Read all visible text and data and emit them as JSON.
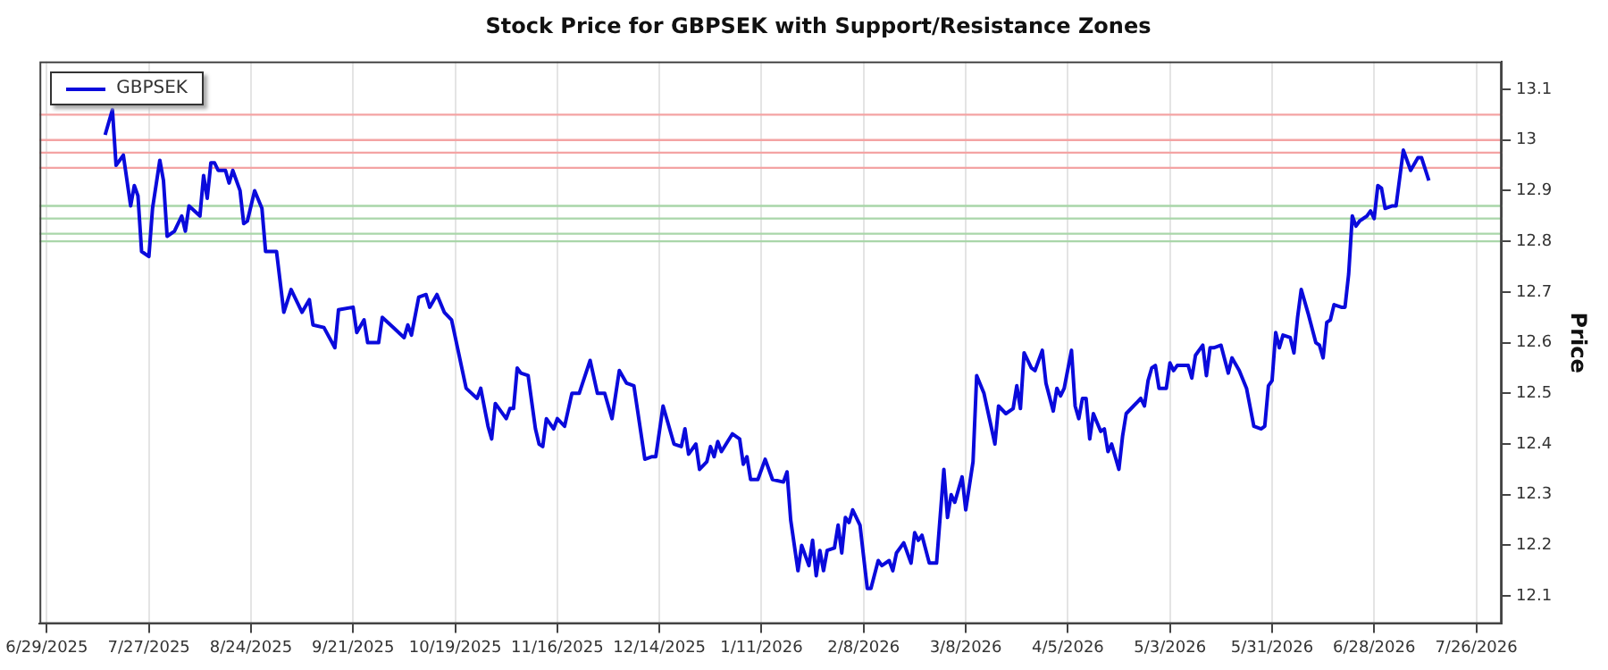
{
  "chart_data": {
    "type": "line",
    "title": "Stock Price for GBPSEK with Support/Resistance Zones",
    "ylabel": "Price",
    "xlim": [
      "2025-06-27",
      "2026-08-02"
    ],
    "xticks": [
      {
        "value": "2025-06-29",
        "label": "6/29/2025"
      },
      {
        "value": "2025-07-27",
        "label": "7/27/2025"
      },
      {
        "value": "2025-08-24",
        "label": "8/24/2025"
      },
      {
        "value": "2025-09-21",
        "label": "9/21/2025"
      },
      {
        "value": "2025-10-19",
        "label": "10/19/2025"
      },
      {
        "value": "2025-11-16",
        "label": "11/16/2025"
      },
      {
        "value": "2025-12-14",
        "label": "12/14/2025"
      },
      {
        "value": "2026-01-11",
        "label": "1/11/2026"
      },
      {
        "value": "2026-02-08",
        "label": "2/8/2026"
      },
      {
        "value": "2026-03-08",
        "label": "3/8/2026"
      },
      {
        "value": "2026-04-05",
        "label": "4/5/2026"
      },
      {
        "value": "2026-05-03",
        "label": "5/3/2026"
      },
      {
        "value": "2026-05-31",
        "label": "5/31/2026"
      },
      {
        "value": "2026-06-28",
        "label": "6/28/2026"
      },
      {
        "value": "2026-07-26",
        "label": "7/26/2026"
      }
    ],
    "ylim": [
      12.045,
      13.155
    ],
    "yticks": [
      12.1,
      12.2,
      12.3,
      12.4,
      12.5,
      12.6,
      12.7,
      12.8,
      12.9,
      {
        "value": 13,
        "label": "13"
      },
      13.1
    ],
    "grid": "x",
    "legend": "top left",
    "line_style": "solid",
    "ref_lines": [
      {
        "axis": "y",
        "value": 13.05,
        "color": "#f4a3a3"
      },
      {
        "axis": "y",
        "value": 13.0,
        "color": "#f4a3a3"
      },
      {
        "axis": "y",
        "value": 12.975,
        "color": "#f4a3a3"
      },
      {
        "axis": "y",
        "value": 12.945,
        "color": "#f4a3a3"
      },
      {
        "axis": "y",
        "value": 12.87,
        "color": "#a9d6a9"
      },
      {
        "axis": "y",
        "value": 12.845,
        "color": "#a9d6a9"
      },
      {
        "axis": "y",
        "value": 12.815,
        "color": "#a9d6a9"
      },
      {
        "axis": "y",
        "value": 12.8,
        "color": "#a9d6a9"
      }
    ],
    "series": [
      {
        "name": "GBPSEK",
        "color": "#0a0adc",
        "x": [
          "2025-07-15",
          "2025-07-17",
          "2025-07-18",
          "2025-07-20",
          "2025-07-22",
          "2025-07-23",
          "2025-07-24",
          "2025-07-25",
          "2025-07-27",
          "2025-07-28",
          "2025-07-30",
          "2025-07-31",
          "2025-08-01",
          "2025-08-03",
          "2025-08-05",
          "2025-08-06",
          "2025-08-07",
          "2025-08-10",
          "2025-08-11",
          "2025-08-12",
          "2025-08-13",
          "2025-08-14",
          "2025-08-15",
          "2025-08-17",
          "2025-08-18",
          "2025-08-19",
          "2025-08-21",
          "2025-08-22",
          "2025-08-23",
          "2025-08-25",
          "2025-08-27",
          "2025-08-28",
          "2025-08-31",
          "2025-09-02",
          "2025-09-04",
          "2025-09-07",
          "2025-09-09",
          "2025-09-10",
          "2025-09-13",
          "2025-09-16",
          "2025-09-17",
          "2025-09-21",
          "2025-09-22",
          "2025-09-24",
          "2025-09-25",
          "2025-09-28",
          "2025-09-29",
          "2025-10-02",
          "2025-10-05",
          "2025-10-06",
          "2025-10-07",
          "2025-10-09",
          "2025-10-11",
          "2025-10-12",
          "2025-10-14",
          "2025-10-16",
          "2025-10-18",
          "2025-10-22",
          "2025-10-25",
          "2025-10-26",
          "2025-10-28",
          "2025-10-29",
          "2025-10-30",
          "2025-11-02",
          "2025-11-03",
          "2025-11-04",
          "2025-11-05",
          "2025-11-06",
          "2025-11-08",
          "2025-11-10",
          "2025-11-11",
          "2025-11-12",
          "2025-11-13",
          "2025-11-15",
          "2025-11-16",
          "2025-11-18",
          "2025-11-20",
          "2025-11-22",
          "2025-11-25",
          "2025-11-27",
          "2025-11-29",
          "2025-12-01",
          "2025-12-03",
          "2025-12-05",
          "2025-12-07",
          "2025-12-10",
          "2025-12-12",
          "2025-12-13",
          "2025-12-15",
          "2025-12-18",
          "2025-12-20",
          "2025-12-21",
          "2025-12-22",
          "2025-12-24",
          "2025-12-25",
          "2025-12-27",
          "2025-12-28",
          "2025-12-29",
          "2025-12-30",
          "2025-12-31",
          "2026-01-03",
          "2026-01-05",
          "2026-01-06",
          "2026-01-07",
          "2026-01-08",
          "2026-01-10",
          "2026-01-12",
          "2026-01-14",
          "2026-01-17",
          "2026-01-18",
          "2026-01-19",
          "2026-01-21",
          "2026-01-22",
          "2026-01-24",
          "2026-01-25",
          "2026-01-26",
          "2026-01-27",
          "2026-01-28",
          "2026-01-29",
          "2026-01-31",
          "2026-02-01",
          "2026-02-02",
          "2026-02-03",
          "2026-02-04",
          "2026-02-05",
          "2026-02-07",
          "2026-02-09",
          "2026-02-10",
          "2026-02-12",
          "2026-02-13",
          "2026-02-15",
          "2026-02-16",
          "2026-02-17",
          "2026-02-19",
          "2026-02-21",
          "2026-02-22",
          "2026-02-23",
          "2026-02-24",
          "2026-02-26",
          "2026-02-28",
          "2026-03-02",
          "2026-03-03",
          "2026-03-04",
          "2026-03-05",
          "2026-03-07",
          "2026-03-08",
          "2026-03-10",
          "2026-03-11",
          "2026-03-13",
          "2026-03-16",
          "2026-03-17",
          "2026-03-19",
          "2026-03-21",
          "2026-03-22",
          "2026-03-23",
          "2026-03-24",
          "2026-03-26",
          "2026-03-27",
          "2026-03-29",
          "2026-03-30",
          "2026-04-01",
          "2026-04-02",
          "2026-04-03",
          "2026-04-04",
          "2026-04-06",
          "2026-04-07",
          "2026-04-08",
          "2026-04-09",
          "2026-04-10",
          "2026-04-11",
          "2026-04-12",
          "2026-04-14",
          "2026-04-15",
          "2026-04-16",
          "2026-04-17",
          "2026-04-19",
          "2026-04-20",
          "2026-04-21",
          "2026-04-23",
          "2026-04-25",
          "2026-04-26",
          "2026-04-27",
          "2026-04-28",
          "2026-04-29",
          "2026-04-30",
          "2026-05-02",
          "2026-05-03",
          "2026-05-04",
          "2026-05-05",
          "2026-05-08",
          "2026-05-09",
          "2026-05-10",
          "2026-05-12",
          "2026-05-13",
          "2026-05-14",
          "2026-05-15",
          "2026-05-17",
          "2026-05-19",
          "2026-05-20",
          "2026-05-22",
          "2026-05-24",
          "2026-05-26",
          "2026-05-28",
          "2026-05-29",
          "2026-05-30",
          "2026-05-31",
          "2026-06-01",
          "2026-06-02",
          "2026-06-03",
          "2026-06-05",
          "2026-06-06",
          "2026-06-07",
          "2026-06-08",
          "2026-06-10",
          "2026-06-12",
          "2026-06-13",
          "2026-06-14",
          "2026-06-15",
          "2026-06-16",
          "2026-06-17",
          "2026-06-19",
          "2026-06-20",
          "2026-06-21",
          "2026-06-22",
          "2026-06-23",
          "2026-06-24",
          "2026-06-26",
          "2026-06-27",
          "2026-06-28",
          "2026-06-29",
          "2026-06-30",
          "2026-07-01",
          "2026-07-03",
          "2026-07-04",
          "2026-07-06",
          "2026-07-08",
          "2026-07-10",
          "2026-07-11",
          "2026-07-13"
        ],
        "values": [
          13.01,
          13.06,
          12.95,
          12.97,
          12.87,
          12.91,
          12.89,
          12.78,
          12.77,
          12.865,
          12.96,
          12.92,
          12.81,
          12.82,
          12.85,
          12.82,
          12.87,
          12.85,
          12.93,
          12.885,
          12.955,
          12.955,
          12.94,
          12.94,
          12.915,
          12.94,
          12.9,
          12.835,
          12.84,
          12.9,
          12.865,
          12.78,
          12.78,
          12.66,
          12.705,
          12.66,
          12.685,
          12.635,
          12.63,
          12.59,
          12.665,
          12.67,
          12.62,
          12.645,
          12.6,
          12.6,
          12.65,
          12.63,
          12.61,
          12.635,
          12.615,
          12.69,
          12.695,
          12.67,
          12.695,
          12.66,
          12.645,
          12.51,
          12.49,
          12.51,
          12.435,
          12.41,
          12.48,
          12.45,
          12.47,
          12.47,
          12.55,
          12.54,
          12.535,
          12.43,
          12.4,
          12.395,
          12.45,
          12.43,
          12.45,
          12.435,
          12.5,
          12.5,
          12.565,
          12.5,
          12.5,
          12.45,
          12.545,
          12.52,
          12.515,
          12.37,
          12.375,
          12.375,
          12.475,
          12.4,
          12.395,
          12.43,
          12.38,
          12.4,
          12.35,
          12.365,
          12.395,
          12.375,
          12.405,
          12.385,
          12.42,
          12.41,
          12.36,
          12.375,
          12.33,
          12.33,
          12.37,
          12.33,
          12.325,
          12.345,
          12.25,
          12.15,
          12.2,
          12.16,
          12.21,
          12.14,
          12.19,
          12.15,
          12.19,
          12.195,
          12.24,
          12.185,
          12.255,
          12.245,
          12.27,
          12.24,
          12.115,
          12.115,
          12.17,
          12.16,
          12.17,
          12.15,
          12.185,
          12.205,
          12.165,
          12.225,
          12.21,
          12.22,
          12.165,
          12.165,
          12.35,
          12.255,
          12.3,
          12.285,
          12.335,
          12.27,
          12.365,
          12.535,
          12.5,
          12.4,
          12.475,
          12.46,
          12.47,
          12.515,
          12.47,
          12.58,
          12.55,
          12.545,
          12.585,
          12.52,
          12.465,
          12.51,
          12.495,
          12.51,
          12.585,
          12.475,
          12.45,
          12.49,
          12.49,
          12.41,
          12.46,
          12.425,
          12.43,
          12.385,
          12.4,
          12.35,
          12.415,
          12.46,
          12.475,
          12.49,
          12.475,
          12.525,
          12.55,
          12.555,
          12.51,
          12.51,
          12.56,
          12.545,
          12.555,
          12.555,
          12.53,
          12.575,
          12.595,
          12.535,
          12.59,
          12.59,
          12.595,
          12.54,
          12.57,
          12.545,
          12.51,
          12.435,
          12.43,
          12.435,
          12.515,
          12.525,
          12.62,
          12.59,
          12.615,
          12.61,
          12.58,
          12.65,
          12.705,
          12.655,
          12.6,
          12.595,
          12.57,
          12.64,
          12.645,
          12.675,
          12.67,
          12.67,
          12.735,
          12.85,
          12.83,
          12.84,
          12.85,
          12.86,
          12.845,
          12.91,
          12.905,
          12.865,
          12.87,
          12.87,
          12.98,
          12.94,
          12.965,
          12.965,
          12.92
        ]
      }
    ]
  }
}
